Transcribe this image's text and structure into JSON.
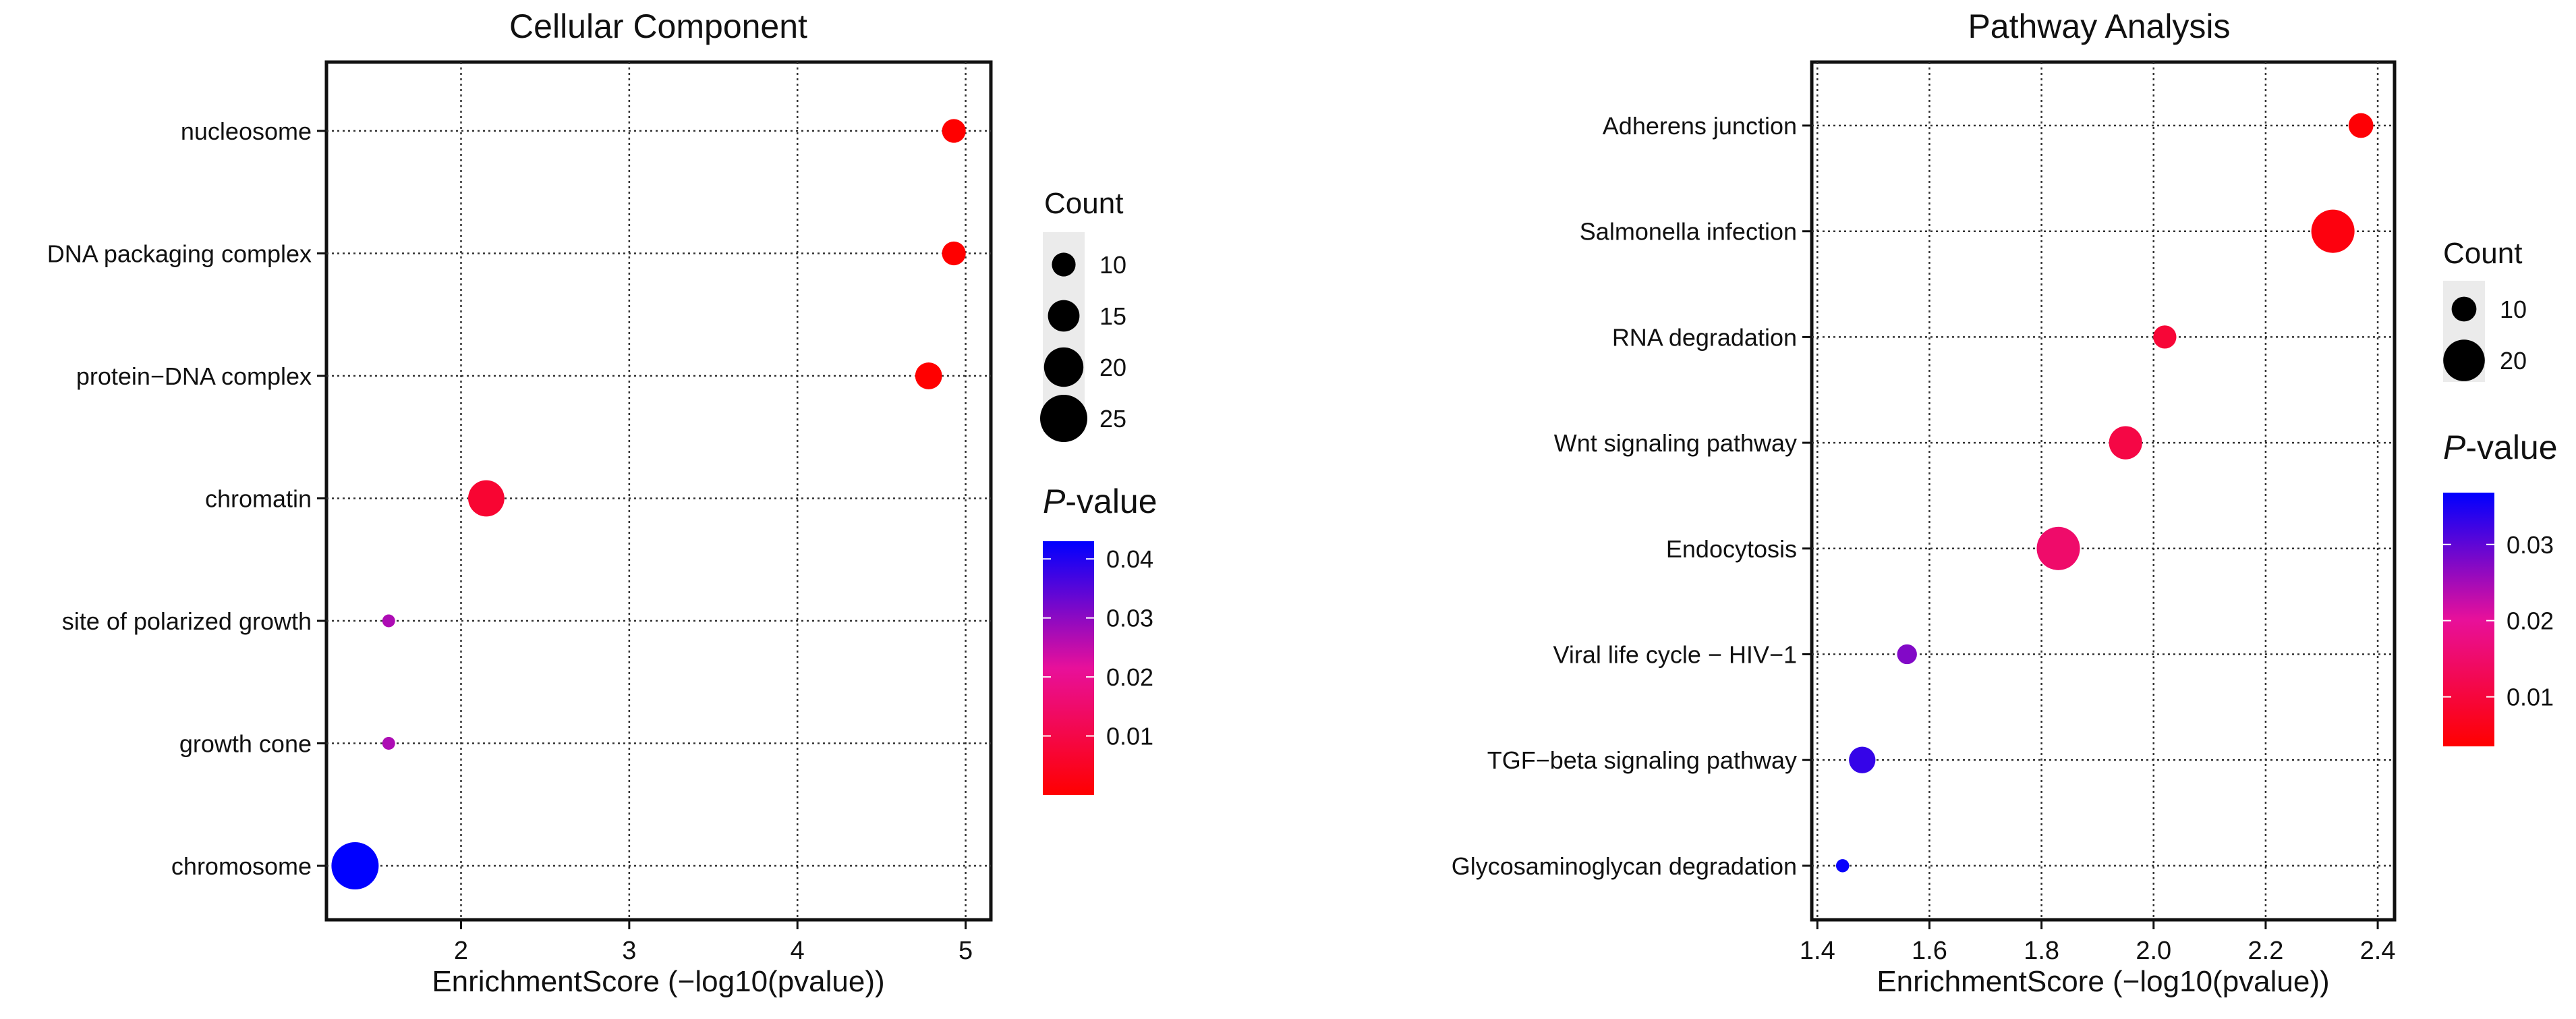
{
  "chart_data": [
    {
      "type": "scatter",
      "title": "Cellular Component",
      "xlabel": "EnrichmentScore (−log10(pvalue))",
      "ylabel": "",
      "xlim": [
        1.2,
        5.15
      ],
      "xticks": [
        2,
        3,
        4,
        5
      ],
      "xtick_labels": [
        "2",
        "3",
        "4",
        "5"
      ],
      "grid": true,
      "categories": [
        "nucleosome",
        "DNA packaging complex",
        "protein−DNA complex",
        "chromatin",
        "site of polarized growth",
        "growth cone",
        "chromosome"
      ],
      "points": [
        {
          "term": "nucleosome",
          "x": 4.93,
          "count": 10,
          "pvalue": 1e-05
        },
        {
          "term": "DNA packaging complex",
          "x": 4.93,
          "count": 10,
          "pvalue": 1e-05
        },
        {
          "term": "protein−DNA complex",
          "x": 4.78,
          "count": 12,
          "pvalue": 2e-05
        },
        {
          "term": "chromatin",
          "x": 2.15,
          "count": 18,
          "pvalue": 0.007
        },
        {
          "term": "site of polarized growth",
          "x": 1.57,
          "count": 3,
          "pvalue": 0.027
        },
        {
          "term": "growth cone",
          "x": 1.57,
          "count": 3,
          "pvalue": 0.027
        },
        {
          "term": "chromosome",
          "x": 1.37,
          "count": 25,
          "pvalue": 0.043
        }
      ],
      "size_legend": {
        "title": "Count",
        "values": [
          10,
          15,
          20,
          25
        ],
        "labels": [
          "10",
          "15",
          "20",
          "25"
        ]
      },
      "color_legend": {
        "title_italic": "P",
        "title_rest": "-value",
        "range": [
          0.0,
          0.043
        ],
        "ticks": [
          0.01,
          0.02,
          0.03,
          0.04
        ],
        "tick_labels": [
          "0.01",
          "0.02",
          "0.03",
          "0.04"
        ],
        "low_color": "#ff0000",
        "high_color": "#0000ff"
      }
    },
    {
      "type": "scatter",
      "title": "Pathway Analysis",
      "xlabel": "EnrichmentScore (−log10(pvalue))",
      "ylabel": "",
      "xlim": [
        1.39,
        2.43
      ],
      "xticks": [
        1.4,
        1.6,
        1.8,
        2.0,
        2.2,
        2.4
      ],
      "xtick_labels": [
        "1.4",
        "1.6",
        "1.8",
        "2.0",
        "2.2",
        "2.4"
      ],
      "grid": true,
      "categories": [
        "Adherens junction",
        "Salmonella infection",
        "RNA degradation",
        "Wnt signaling pathway",
        "Endocytosis",
        "Viral life cycle − HIV−1",
        "TGF−beta signaling pathway",
        "Glycosaminoglycan degradation"
      ],
      "points": [
        {
          "term": "Adherens junction",
          "x": 2.37,
          "count": 10,
          "pvalue": 0.004
        },
        {
          "term": "Salmonella infection",
          "x": 2.32,
          "count": 21,
          "pvalue": 0.005
        },
        {
          "term": "RNA degradation",
          "x": 2.02,
          "count": 9,
          "pvalue": 0.0095
        },
        {
          "term": "Wnt signaling pathway",
          "x": 1.95,
          "count": 15,
          "pvalue": 0.011
        },
        {
          "term": "Endocytosis",
          "x": 1.83,
          "count": 21,
          "pvalue": 0.015
        },
        {
          "term": "Viral life cycle − HIV−1",
          "x": 1.56,
          "count": 7,
          "pvalue": 0.0275
        },
        {
          "term": "TGF−beta signaling pathway",
          "x": 1.48,
          "count": 11,
          "pvalue": 0.033
        },
        {
          "term": "Glycosaminoglycan degradation",
          "x": 1.445,
          "count": 3,
          "pvalue": 0.0362
        }
      ],
      "size_legend": {
        "title": "Count",
        "values": [
          10,
          20
        ],
        "labels": [
          "10",
          "20"
        ]
      },
      "color_legend": {
        "title_italic": "P",
        "title_rest": "-value",
        "range": [
          0.0035,
          0.0368
        ],
        "ticks": [
          0.01,
          0.02,
          0.03
        ],
        "tick_labels": [
          "0.01",
          "0.02",
          "0.03"
        ],
        "low_color": "#ff0000",
        "high_color": "#0000ff"
      }
    }
  ]
}
